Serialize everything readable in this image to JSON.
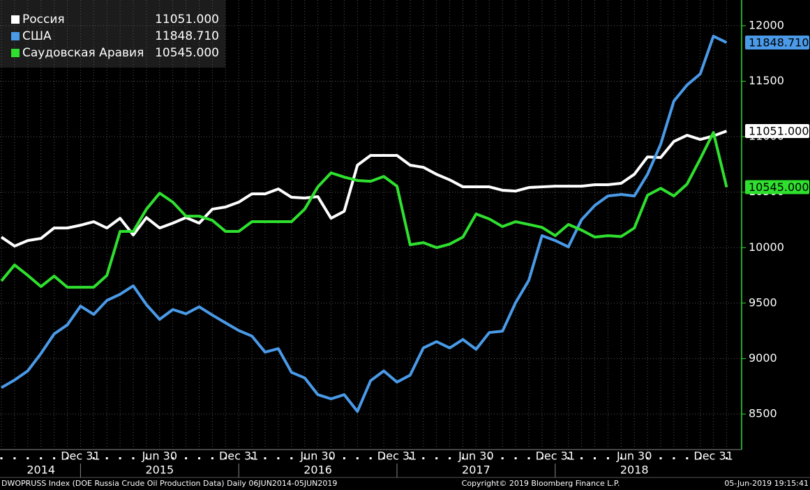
{
  "chart_data": {
    "type": "line",
    "categories": [
      null,
      null,
      null,
      null,
      null,
      null,
      "Dec 31",
      null,
      null,
      null,
      null,
      null,
      "Jun 30",
      null,
      null,
      null,
      null,
      null,
      "Dec 31",
      null,
      null,
      null,
      null,
      null,
      "Jun 30",
      null,
      null,
      null,
      null,
      null,
      "Dec 31",
      null,
      null,
      null,
      null,
      null,
      "Jun 30",
      null,
      null,
      null,
      null,
      null,
      "Dec 31",
      null,
      null,
      null,
      null,
      null,
      "Jun 30",
      null,
      null,
      null,
      null,
      null,
      "Dec 31",
      null
    ],
    "years": [
      "2014",
      "2015",
      "2016",
      "2017",
      "2018"
    ],
    "series": [
      {
        "name": "Россия",
        "color": "#ffffff",
        "last_label": "11051.000",
        "values": [
          10095,
          10014,
          10064,
          10083,
          10177,
          10177,
          10202,
          10234,
          10177,
          10265,
          10114,
          10271,
          10177,
          10221,
          10271,
          10221,
          10347,
          10366,
          10410,
          10485,
          10485,
          10529,
          10454,
          10447,
          10460,
          10265,
          10328,
          10743,
          10831,
          10831,
          10831,
          10743,
          10724,
          10661,
          10611,
          10548,
          10548,
          10548,
          10517,
          10510,
          10542,
          10548,
          10554,
          10554,
          10554,
          10567,
          10567,
          10580,
          10661,
          10818,
          10812,
          10957,
          11013,
          10975,
          11007,
          11051
        ]
      },
      {
        "name": "США",
        "color": "#4a9ae8",
        "last_label": "11848.710",
        "values": [
          8738,
          8807,
          8889,
          9046,
          9222,
          9304,
          9473,
          9398,
          9524,
          9580,
          9656,
          9486,
          9354,
          9442,
          9404,
          9467,
          9392,
          9322,
          9253,
          9203,
          9058,
          9090,
          8876,
          8826,
          8675,
          8637,
          8675,
          8524,
          8801,
          8889,
          8788,
          8851,
          9096,
          9153,
          9096,
          9172,
          9084,
          9235,
          9247,
          9505,
          9706,
          10108,
          10064,
          10007,
          10252,
          10380,
          10466,
          10479,
          10466,
          10661,
          10932,
          11321,
          11466,
          11566,
          11906,
          11848.71
        ]
      },
      {
        "name": "Саудовская Аравия",
        "color": "#2fe02f",
        "last_label": "10545.000",
        "values": [
          9700,
          9844,
          9750,
          9649,
          9744,
          9643,
          9643,
          9643,
          9750,
          10146,
          10146,
          10347,
          10491,
          10410,
          10284,
          10284,
          10246,
          10146,
          10146,
          10234,
          10234,
          10234,
          10234,
          10347,
          10548,
          10674,
          10636,
          10605,
          10598,
          10642,
          10554,
          10026,
          10045,
          10000,
          10032,
          10095,
          10303,
          10259,
          10190,
          10234,
          10209,
          10183,
          10108,
          10209,
          10158,
          10095,
          10108,
          10100,
          10177,
          10472,
          10535,
          10466,
          10573,
          10800,
          11038,
          10545
        ]
      }
    ],
    "ylim": [
      8180,
      12232
    ],
    "yticks": [
      8500,
      9000,
      9500,
      10000,
      10500,
      11000,
      11500,
      12000
    ],
    "grid": true,
    "footer": {
      "left": "DWOPRUSS Index (DOE Russia Crude Oil Production Data)  Daily 06JUN2014-05JUN2019",
      "center": "Copyright© 2019 Bloomberg Finance L.P.",
      "right": "05-Jun-2019 19:15:41"
    }
  }
}
